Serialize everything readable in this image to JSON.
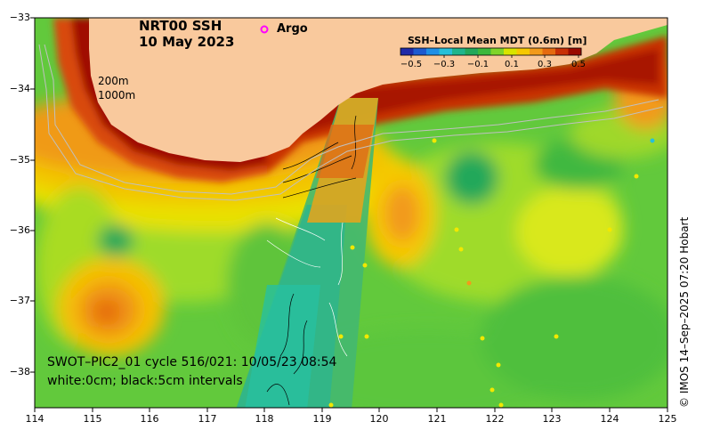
{
  "title": {
    "line1": "NRT00 SSH",
    "line2": "10 May 2023"
  },
  "legend": {
    "argo_label": "Argo",
    "argo_marker": "o",
    "argo_color": "#ff00ff"
  },
  "contours": {
    "a": "200m",
    "b": "1000m"
  },
  "colorbar": {
    "title": "SSH–Local Mean MDT (0.6m) [m]",
    "ticks": [
      "−0.5",
      "−0.3",
      "−0.1",
      "0.1",
      "0.3",
      "0.5"
    ],
    "colors": [
      "#1f2aa8",
      "#1e5ad0",
      "#1f8fe6",
      "#27c0d8",
      "#1fb58c",
      "#22a85a",
      "#3cb83c",
      "#7fd42a",
      "#d8e400",
      "#f6c800",
      "#f29a1a",
      "#e56a10",
      "#c83006",
      "#9a0a00"
    ]
  },
  "swot": {
    "line1": "SWOT–PIC2_01 cycle 516/021: 10/05/23 08:54",
    "line2": "white:0cm; black:5cm intervals"
  },
  "credit": "© IMOS 14–Sep–2025 07:20 Hobart",
  "axes": {
    "x_ticks": [
      "114",
      "115",
      "116",
      "117",
      "118",
      "119",
      "120",
      "121",
      "122",
      "123",
      "124",
      "125"
    ],
    "y_ticks": [
      "−33",
      "−34",
      "−35",
      "−36",
      "−37",
      "−38"
    ]
  }
}
